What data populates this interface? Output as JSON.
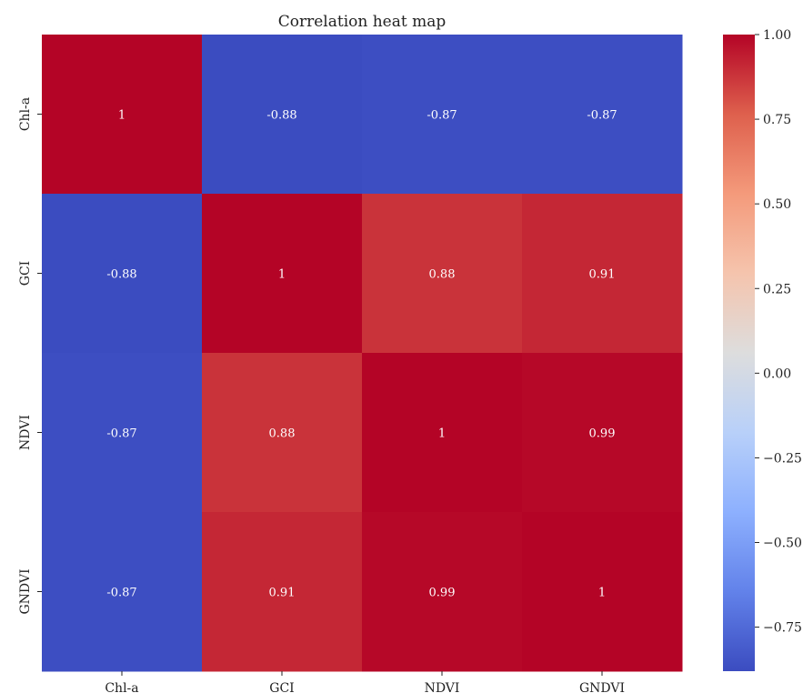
{
  "chart_data": {
    "type": "heatmap",
    "title": "Correlation heat map",
    "xlabel": "",
    "ylabel": "",
    "x_categories": [
      "Chl-a",
      "GCI",
      "NDVI",
      "GNDVI"
    ],
    "y_categories": [
      "Chl-a",
      "GCI",
      "NDVI",
      "GNDVI"
    ],
    "values": [
      [
        1.0,
        -0.88,
        -0.87,
        -0.87
      ],
      [
        -0.88,
        1.0,
        0.88,
        0.91
      ],
      [
        -0.87,
        0.88,
        1.0,
        0.99
      ],
      [
        -0.87,
        0.91,
        0.99,
        1.0
      ]
    ],
    "cell_labels": [
      [
        "1",
        "-0.88",
        "-0.87",
        "-0.87"
      ],
      [
        "-0.88",
        "1",
        "0.88",
        "0.91"
      ],
      [
        "-0.87",
        "0.88",
        "1",
        "0.99"
      ],
      [
        "-0.87",
        "0.91",
        "0.99",
        "1"
      ]
    ],
    "colormap": "coolwarm",
    "colorbar": {
      "range": [
        -0.88,
        1.0
      ],
      "ticks": [
        1.0,
        0.75,
        0.5,
        0.25,
        0.0,
        -0.25,
        -0.5,
        -0.75
      ],
      "tick_labels": [
        "1.00",
        "0.75",
        "0.50",
        "0.25",
        "0.00",
        "−0.25",
        "−0.50",
        "−0.75"
      ]
    },
    "grid": false
  }
}
